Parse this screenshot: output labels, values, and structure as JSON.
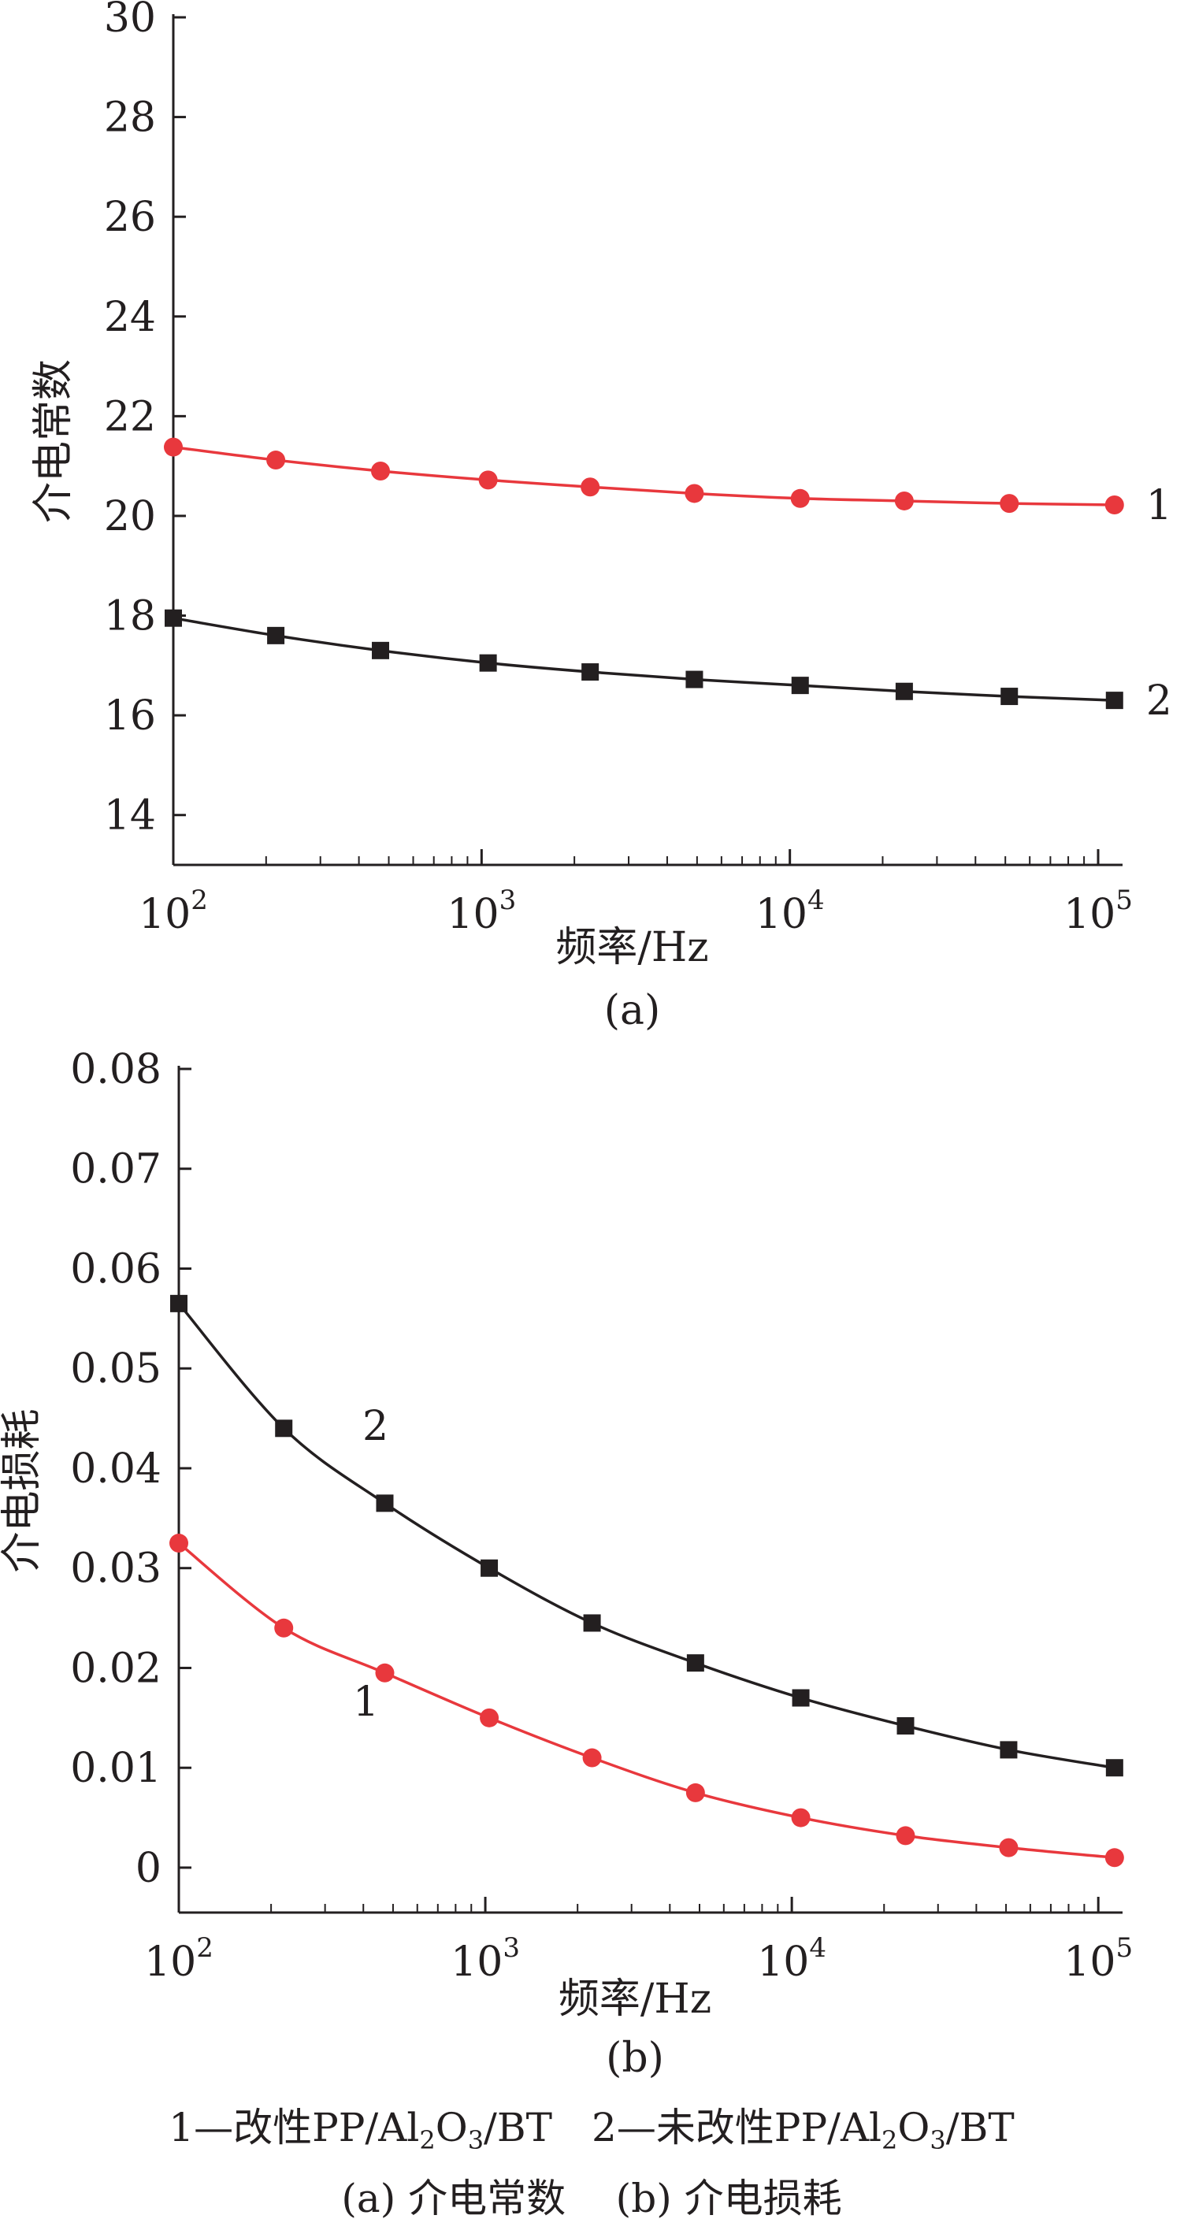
{
  "colors": {
    "axis": "#231f20",
    "series_1": "#e8383d",
    "series_2": "#231f20"
  },
  "chart_data": [
    {
      "type": "line",
      "sub_label": "(a)",
      "xlabel": "频率/Hz",
      "ylabel": "介电常数",
      "xscale": "log",
      "xlim": [
        100,
        120000
      ],
      "ylim": [
        13,
        30
      ],
      "yticks": [
        "14",
        "16",
        "18",
        "20",
        "22",
        "24",
        "26",
        "28",
        "30"
      ],
      "xticks": [
        {
          "base": "10",
          "exp": "2"
        },
        {
          "base": "10",
          "exp": "3"
        },
        {
          "base": "10",
          "exp": "4"
        },
        {
          "base": "10",
          "exp": "5"
        }
      ],
      "series": [
        {
          "label": "1",
          "marker": "circle",
          "color": "#e8383d",
          "x": [
            100,
            215,
            470,
            1050,
            2250,
            4900,
            10800,
            23500,
            51500,
            113000
          ],
          "y": [
            21.38,
            21.12,
            20.9,
            20.72,
            20.58,
            20.45,
            20.35,
            20.3,
            20.25,
            20.22
          ]
        },
        {
          "label": "2",
          "marker": "square",
          "color": "#231f20",
          "x": [
            100,
            215,
            470,
            1050,
            2250,
            4900,
            10800,
            23500,
            51500,
            113000
          ],
          "y": [
            17.95,
            17.6,
            17.3,
            17.05,
            16.87,
            16.72,
            16.6,
            16.48,
            16.38,
            16.3
          ]
        }
      ]
    },
    {
      "type": "line",
      "sub_label": "(b)",
      "xlabel": "频率/Hz",
      "ylabel": "介电损耗",
      "xscale": "log",
      "xlim": [
        100,
        120000
      ],
      "ylim": [
        -0.0045,
        0.08
      ],
      "yticks": [
        "0",
        "0.01",
        "0.02",
        "0.03",
        "0.04",
        "0.05",
        "0.06",
        "0.07",
        "0.08"
      ],
      "xticks": [
        {
          "base": "10",
          "exp": "2"
        },
        {
          "base": "10",
          "exp": "3"
        },
        {
          "base": "10",
          "exp": "4"
        },
        {
          "base": "10",
          "exp": "5"
        }
      ],
      "series": [
        {
          "label": "1",
          "marker": "circle",
          "color": "#e8383d",
          "x": [
            100,
            220,
            470,
            1030,
            2230,
            4850,
            10700,
            23500,
            51000,
            113000
          ],
          "y": [
            0.0325,
            0.024,
            0.0195,
            0.015,
            0.011,
            0.0075,
            0.005,
            0.0032,
            0.002,
            0.001
          ]
        },
        {
          "label": "2",
          "marker": "square",
          "color": "#231f20",
          "x": [
            100,
            220,
            470,
            1030,
            2230,
            4850,
            10700,
            23500,
            51000,
            113000
          ],
          "y": [
            0.0565,
            0.044,
            0.0365,
            0.03,
            0.0245,
            0.0205,
            0.017,
            0.0142,
            0.0118,
            0.01
          ]
        }
      ]
    }
  ],
  "caption": {
    "legend_1_num": "1",
    "legend_1_name": "—改性PP/Al",
    "legend_2_num": "2",
    "legend_2_name": "—未改性PP/Al",
    "al_sub": "2",
    "o_char": "O",
    "o_sub": "3",
    "tail": "/BT",
    "parts_line": "(a) 介电常数    (b) 介电损耗"
  }
}
